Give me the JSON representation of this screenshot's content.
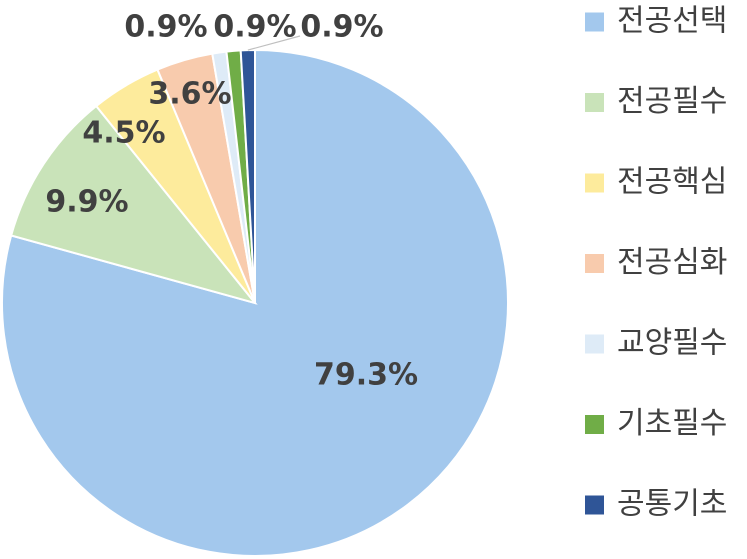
{
  "chart_data": {
    "type": "pie",
    "categories": [
      "전공선택",
      "전공필수",
      "전공핵심",
      "전공심화",
      "교양필수",
      "기초필수",
      "공통기초"
    ],
    "values": [
      79.3,
      9.9,
      4.5,
      3.6,
      0.9,
      0.9,
      0.9
    ],
    "labels": [
      "79.3%",
      "9.9%",
      "4.5%",
      "3.6%",
      "0.9%",
      "0.9%",
      "0.9%"
    ],
    "colors": [
      "#a3c8ed",
      "#c9e3b9",
      "#fdeb9c",
      "#f8cbad",
      "#deebf7",
      "#70ad47",
      "#2f5597"
    ],
    "legend_position": "right",
    "start_angle": "12 o'clock, clockwise"
  }
}
